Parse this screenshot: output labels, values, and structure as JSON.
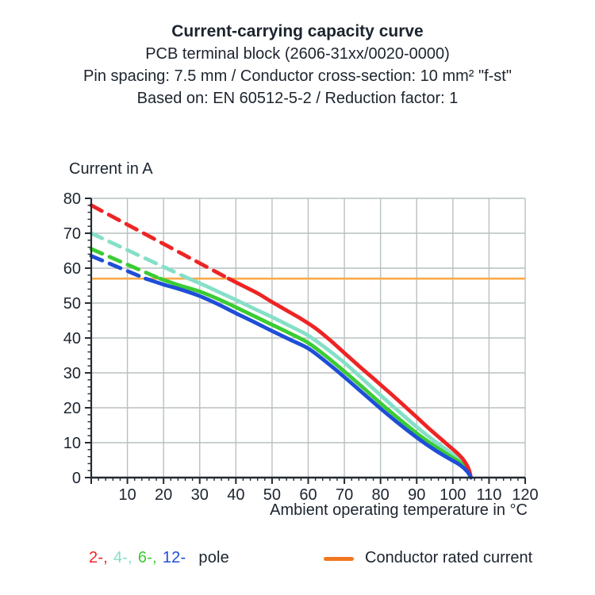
{
  "header": {
    "line1": "Current-carrying capacity curve",
    "line2": "PCB terminal block (2606-31xx/0020-0000)",
    "line3": "Pin spacing: 7.5 mm / Conductor cross-section: 10 mm² \"f-st\"",
    "line4": "Based on: EN 60512-5-2 / Reduction factor: 1"
  },
  "legend": {
    "pole_items": [
      {
        "label": "2-,",
        "color": "#ee2424"
      },
      {
        "label": "4-,",
        "color": "#86dfc8"
      },
      {
        "label": "6-,",
        "color": "#3bcc33"
      },
      {
        "label": "12-",
        "color": "#1e4ed8"
      }
    ],
    "pole_suffix": "pole",
    "rated_label": "Conductor rated current",
    "rated_swatch_color": "#f0761f"
  },
  "chart_data": {
    "type": "line",
    "title": "Current-carrying capacity curve",
    "xlabel": "Ambient operating temperature in °C",
    "ylabel": "Current in A",
    "xlim": [
      0,
      120
    ],
    "ylim": [
      0,
      80
    ],
    "x_major_tick": 10,
    "x_minor_tick": 2,
    "y_major_tick": 10,
    "y_minor_tick": 2,
    "x_tick_labels": [
      10,
      20,
      30,
      40,
      50,
      60,
      70,
      80,
      90,
      100,
      110,
      120
    ],
    "y_tick_labels": [
      0,
      10,
      20,
      30,
      40,
      50,
      60,
      70,
      80
    ],
    "grid": true,
    "grid_color": "#b8c0c0",
    "axis_color": "#232b33",
    "rated_current_A": 57,
    "rated_line_color": "#fbaa4b",
    "note": "Curves are dashed above the conductor rated current (57 A) and solid below it; all poles derate to 0 A at 105 °C",
    "series": [
      {
        "name": "2-pole",
        "color": "#ee2424",
        "dash_to_solid_at_C": 38,
        "dashed": [
          [
            0,
            78
          ],
          [
            38,
            57
          ]
        ],
        "solid": [
          [
            38,
            57
          ],
          [
            42,
            54.9
          ],
          [
            46,
            52.8
          ],
          [
            50,
            50.3
          ],
          [
            54,
            47.9
          ],
          [
            58,
            45.5
          ],
          [
            62,
            42.8
          ],
          [
            66,
            39.4
          ],
          [
            70,
            35.7
          ],
          [
            74,
            32.0
          ],
          [
            78,
            28.4
          ],
          [
            82,
            24.8
          ],
          [
            86,
            21.1
          ],
          [
            90,
            17.3
          ],
          [
            94,
            13.5
          ],
          [
            98,
            9.9
          ],
          [
            101,
            7.2
          ],
          [
            103,
            5.0
          ],
          [
            104.4,
            2.4
          ],
          [
            105,
            0
          ]
        ]
      },
      {
        "name": "4-pole",
        "color": "#86dfc8",
        "dash_to_solid_at_C": 27,
        "dashed": [
          [
            0,
            70
          ],
          [
            27,
            57
          ]
        ],
        "solid": [
          [
            27,
            57
          ],
          [
            31,
            55.2
          ],
          [
            35,
            53.3
          ],
          [
            40,
            50.9
          ],
          [
            45,
            48.4
          ],
          [
            50,
            46.0
          ],
          [
            55,
            43.4
          ],
          [
            60,
            40.7
          ],
          [
            65,
            37.0
          ],
          [
            70,
            32.9
          ],
          [
            75,
            28.3
          ],
          [
            80,
            23.6
          ],
          [
            85,
            19.0
          ],
          [
            90,
            14.5
          ],
          [
            95,
            10.4
          ],
          [
            99,
            7.4
          ],
          [
            102,
            5.1
          ],
          [
            104,
            2.4
          ],
          [
            105,
            0
          ]
        ]
      },
      {
        "name": "6-pole",
        "color": "#3bcc33",
        "dash_to_solid_at_C": 19,
        "dashed": [
          [
            0,
            65.5
          ],
          [
            19,
            57
          ]
        ],
        "solid": [
          [
            19,
            57
          ],
          [
            24,
            55.2
          ],
          [
            30,
            53.3
          ],
          [
            35,
            51.2
          ],
          [
            40,
            48.8
          ],
          [
            45,
            46.3
          ],
          [
            50,
            43.8
          ],
          [
            55,
            41.3
          ],
          [
            60,
            38.6
          ],
          [
            65,
            34.7
          ],
          [
            70,
            30.4
          ],
          [
            75,
            25.9
          ],
          [
            80,
            21.3
          ],
          [
            85,
            16.9
          ],
          [
            90,
            12.7
          ],
          [
            95,
            9.0
          ],
          [
            99,
            6.3
          ],
          [
            102,
            4.3
          ],
          [
            104,
            2.1
          ],
          [
            105,
            0
          ]
        ]
      },
      {
        "name": "12-pole",
        "color": "#1e4ed8",
        "dash_to_solid_at_C": 15,
        "dashed": [
          [
            0,
            63.5
          ],
          [
            15,
            57
          ]
        ],
        "solid": [
          [
            15,
            57
          ],
          [
            20,
            55.3
          ],
          [
            25,
            53.8
          ],
          [
            30,
            52.0
          ],
          [
            35,
            49.7
          ],
          [
            40,
            47.1
          ],
          [
            45,
            44.6
          ],
          [
            50,
            42.0
          ],
          [
            55,
            39.5
          ],
          [
            60,
            37.0
          ],
          [
            65,
            33.1
          ],
          [
            70,
            28.8
          ],
          [
            75,
            24.3
          ],
          [
            80,
            19.8
          ],
          [
            85,
            15.5
          ],
          [
            90,
            11.5
          ],
          [
            95,
            7.9
          ],
          [
            99,
            5.4
          ],
          [
            102,
            3.6
          ],
          [
            104,
            1.7
          ],
          [
            105,
            0
          ]
        ]
      }
    ],
    "legend_entries": [
      "2-, 4-, 6-, 12- pole",
      "Conductor rated current"
    ]
  }
}
